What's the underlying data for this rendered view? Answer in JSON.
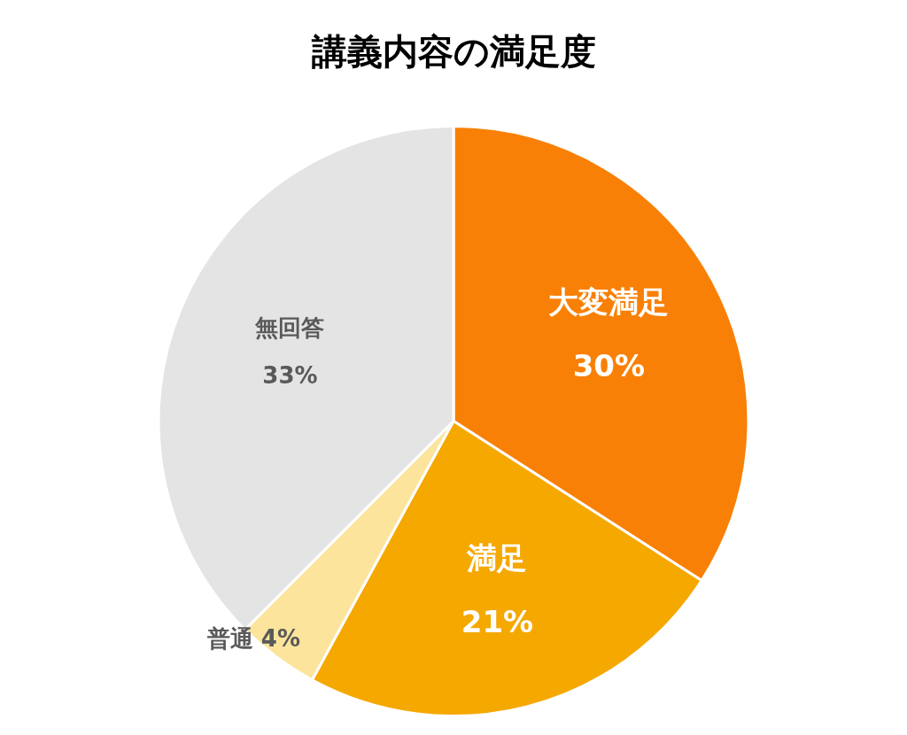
{
  "chart_data": {
    "type": "pie",
    "title": "講義内容の満足度",
    "categories": [
      "大変満足",
      "満足",
      "普通",
      "無回答"
    ],
    "values": [
      30,
      21,
      4,
      33
    ],
    "value_labels": [
      "30%",
      "21%",
      "4%",
      "33%"
    ],
    "colors": [
      "#f98006",
      "#f5a800",
      "#fce49c",
      "#e4e4e4"
    ],
    "legend": false
  }
}
